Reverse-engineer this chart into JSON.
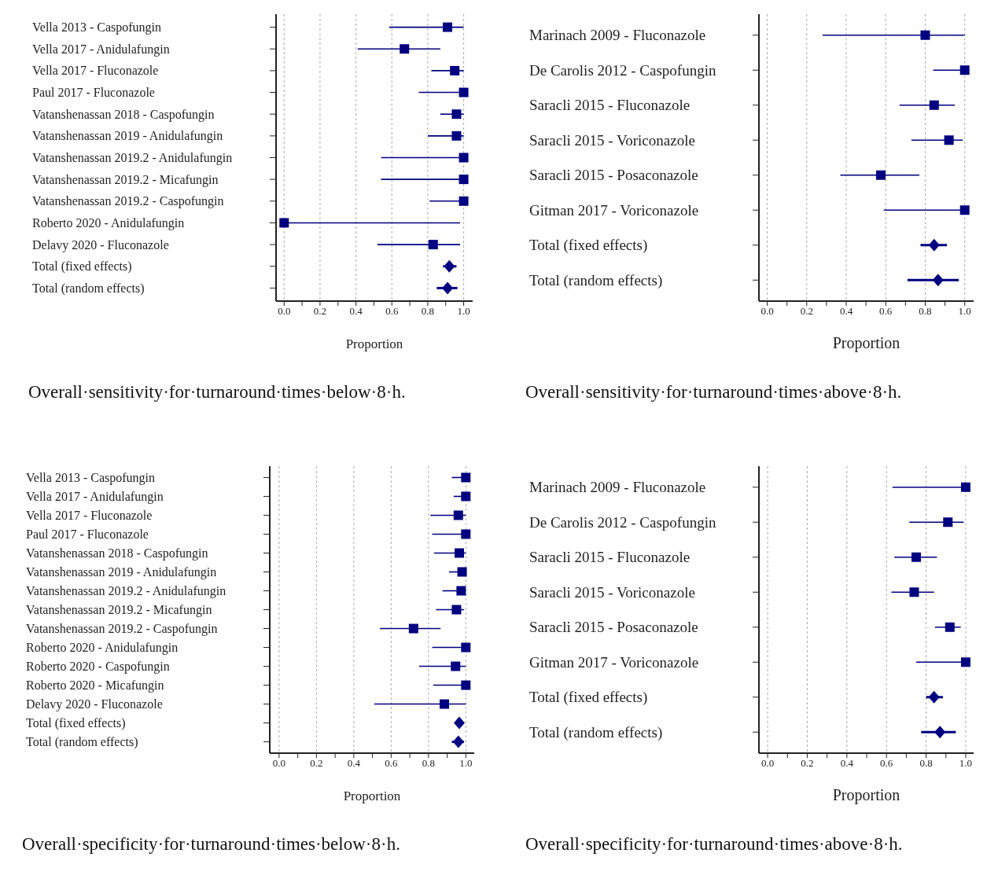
{
  "chart_data": [
    {
      "type": "scatter",
      "orientation": "horizontal",
      "title": "Overall·sensitivity·for·turnaround·times·below·8·h.",
      "xlabel": "Proportion",
      "grid": "x",
      "categories": [
        "Vella 2013 - Caspofungin",
        "Vella 2017 - Anidulafungin",
        "Vella 2017 - Fluconazole",
        "Paul 2017 - Fluconazole",
        "Vatanshenassan 2018 - Caspofungin",
        "Vatanshenassan 2019 - Anidulafungin",
        "Vatanshenassan 2019.2 - Anidulafungin",
        "Vatanshenassan 2019.2 - Micafungin",
        "Vatanshenassan 2019.2 - Caspofungin",
        "Roberto 2020 - Anidulafungin",
        "Delavy 2020 - Fluconazole",
        "Total (fixed effects)",
        "Total (random effects)"
      ],
      "xlim": [
        -0.045,
        1.05
      ],
      "xticks": [
        {
          "value": 0,
          "label": "0.0"
        },
        {
          "value": 0.1,
          "label": null
        },
        {
          "value": 0.2,
          "label": "0.2"
        },
        {
          "value": 0.3,
          "label": null
        },
        {
          "value": 0.4,
          "label": "0.4"
        },
        {
          "value": 0.5,
          "label": null
        },
        {
          "value": 0.6,
          "label": "0.6"
        },
        {
          "value": 0.7,
          "label": null
        },
        {
          "value": 0.8,
          "label": "0.8"
        },
        {
          "value": 0.9,
          "label": null
        },
        {
          "value": 1,
          "label": "1.0"
        }
      ],
      "series": [
        {
          "marker": "square",
          "color": "#000080",
          "values": [
            0.91,
            0.67,
            0.95,
            1.0,
            0.96,
            0.96,
            1.0,
            1.0,
            1.0,
            0.0,
            0.83,
            null,
            null
          ],
          "errors": [
            [
              0.585,
              1.0
            ],
            [
              0.41,
              0.87
            ],
            [
              0.82,
              1.0
            ],
            [
              0.75,
              1.0
            ],
            [
              0.87,
              1.0
            ],
            [
              0.8,
              1.0
            ],
            [
              0.54,
              1.0
            ],
            [
              0.54,
              1.0
            ],
            [
              0.81,
              1.0
            ],
            [
              0.0,
              0.98
            ],
            [
              0.52,
              0.98
            ],
            null,
            null
          ]
        },
        {
          "marker": "diamond",
          "color": "#000080",
          "values": [
            null,
            null,
            null,
            null,
            null,
            null,
            null,
            null,
            null,
            null,
            null,
            0.92,
            0.91
          ],
          "errors": [
            null,
            null,
            null,
            null,
            null,
            null,
            null,
            null,
            null,
            null,
            null,
            [
              0.885,
              0.96
            ],
            [
              0.85,
              0.965
            ]
          ]
        }
      ]
    },
    {
      "type": "scatter",
      "orientation": "horizontal",
      "title": "Overall·sensitivity·for·turnaround·times·above·8·h.",
      "xlabel": "Proportion",
      "grid": "x",
      "categories": [
        "Marinach 2009 - Fluconazole",
        "De Carolis 2012 - Caspofungin",
        "Saracli 2015 - Fluconazole",
        "Saracli 2015 - Voriconazole",
        "Saracli 2015 - Posaconazole",
        "Gitman 2017 - Voriconazole",
        "Total (fixed effects)",
        "Total (random effects)"
      ],
      "xlim": [
        -0.042,
        1.045
      ],
      "xticks": [
        {
          "value": 0,
          "label": "0.0"
        },
        {
          "value": 0.1,
          "label": null
        },
        {
          "value": 0.2,
          "label": "0.2"
        },
        {
          "value": 0.3,
          "label": null
        },
        {
          "value": 0.4,
          "label": "0.4"
        },
        {
          "value": 0.5,
          "label": null
        },
        {
          "value": 0.6,
          "label": "0.6"
        },
        {
          "value": 0.7,
          "label": null
        },
        {
          "value": 0.8,
          "label": "0.8"
        },
        {
          "value": 0.9,
          "label": null
        },
        {
          "value": 1,
          "label": "1.0"
        }
      ],
      "series": [
        {
          "marker": "square",
          "color": "#000080",
          "values": [
            0.8,
            1.0,
            0.845,
            0.92,
            0.575,
            1.0,
            null,
            null
          ],
          "errors": [
            [
              0.28,
              1.0
            ],
            [
              0.84,
              1.0
            ],
            [
              0.67,
              0.95
            ],
            [
              0.73,
              0.99
            ],
            [
              0.37,
              0.77
            ],
            [
              0.59,
              1.0
            ],
            null,
            null
          ]
        },
        {
          "marker": "diamond",
          "color": "#000080",
          "values": [
            null,
            null,
            null,
            null,
            null,
            null,
            0.845,
            0.865
          ],
          "errors": [
            null,
            null,
            null,
            null,
            null,
            null,
            [
              0.776,
              0.91
            ],
            [
              0.71,
              0.97
            ]
          ]
        }
      ]
    },
    {
      "type": "scatter",
      "orientation": "horizontal",
      "title": "Overall·specificity·for·turnaround·times·below·8·h.",
      "xlabel": "Proportion",
      "grid": "x",
      "categories": [
        "Vella 2013 - Caspofungin",
        "Vella 2017 - Anidulafungin",
        "Vella 2017 - Fluconazole",
        "Paul 2017 - Fluconazole",
        "Vatanshenassan 2018 - Caspofungin",
        "Vatanshenassan 2019 - Anidulafungin",
        "Vatanshenassan 2019.2 - Anidulafungin",
        "Vatanshenassan 2019.2 - Micafungin",
        "Vatanshenassan 2019.2 - Caspofungin",
        "Roberto 2020 - Anidulafungin",
        "Roberto 2020 - Caspofungin",
        "Roberto 2020 - Micafungin",
        "Delavy 2020 - Fluconazole",
        "Total (fixed effects)",
        "Total (random effects)"
      ],
      "xlim": [
        -0.05,
        1.045
      ],
      "xticks": [
        {
          "value": 0,
          "label": "0.0"
        },
        {
          "value": 0.1,
          "label": null
        },
        {
          "value": 0.2,
          "label": "0.2"
        },
        {
          "value": 0.3,
          "label": null
        },
        {
          "value": 0.4,
          "label": "0.4"
        },
        {
          "value": 0.5,
          "label": null
        },
        {
          "value": 0.6,
          "label": "0.6"
        },
        {
          "value": 0.7,
          "label": null
        },
        {
          "value": 0.8,
          "label": "0.8"
        },
        {
          "value": 0.9,
          "label": null
        },
        {
          "value": 1,
          "label": "1.0"
        }
      ],
      "series": [
        {
          "marker": "square",
          "color": "#000080",
          "values": [
            1.0,
            1.0,
            0.96,
            1.0,
            0.965,
            0.98,
            0.975,
            0.95,
            0.72,
            1.0,
            0.945,
            1.0,
            0.885,
            null,
            null
          ],
          "errors": [
            [
              0.925,
              1.0
            ],
            [
              0.935,
              1.0
            ],
            [
              0.81,
              1.0
            ],
            [
              0.82,
              1.0
            ],
            [
              0.83,
              1.0
            ],
            [
              0.91,
              1.0
            ],
            [
              0.875,
              1.0
            ],
            [
              0.84,
              0.99
            ],
            [
              0.54,
              0.865
            ],
            [
              0.82,
              1.0
            ],
            [
              0.75,
              1.0
            ],
            [
              0.825,
              1.0
            ],
            [
              0.51,
              1.0
            ],
            null,
            null
          ]
        },
        {
          "marker": "diamond",
          "color": "#000080",
          "values": [
            null,
            null,
            null,
            null,
            null,
            null,
            null,
            null,
            null,
            null,
            null,
            null,
            null,
            0.965,
            0.96
          ],
          "errors": [
            null,
            null,
            null,
            null,
            null,
            null,
            null,
            null,
            null,
            null,
            null,
            null,
            null,
            [
              0.945,
              0.98
            ],
            [
              0.925,
              0.99
            ]
          ]
        }
      ]
    },
    {
      "type": "scatter",
      "orientation": "horizontal",
      "title": "Overall·specificity·for·turnaround·times·above·8·h.",
      "xlabel": "Proportion",
      "grid": "x",
      "categories": [
        "Marinach 2009 - Fluconazole",
        "De Carolis 2012 - Caspofungin",
        "Saracli 2015 - Fluconazole",
        "Saracli 2015 - Voriconazole",
        "Saracli 2015 - Posaconazole",
        "Gitman 2017 - Voriconazole",
        "Total (fixed effects)",
        "Total (random effects)"
      ],
      "xlim": [
        -0.044,
        1.04
      ],
      "xticks": [
        {
          "value": 0,
          "label": "0.0"
        },
        {
          "value": 0.1,
          "label": null
        },
        {
          "value": 0.2,
          "label": "0.2"
        },
        {
          "value": 0.3,
          "label": null
        },
        {
          "value": 0.4,
          "label": "0.4"
        },
        {
          "value": 0.5,
          "label": null
        },
        {
          "value": 0.6,
          "label": "0.6"
        },
        {
          "value": 0.7,
          "label": null
        },
        {
          "value": 0.8,
          "label": "0.8"
        },
        {
          "value": 0.9,
          "label": null
        },
        {
          "value": 1,
          "label": "1.0"
        }
      ],
      "series": [
        {
          "marker": "square",
          "color": "#000080",
          "values": [
            1.0,
            0.91,
            0.75,
            0.74,
            0.92,
            1.0,
            null,
            null
          ],
          "errors": [
            [
              0.63,
              1.0
            ],
            [
              0.715,
              0.99
            ],
            [
              0.64,
              0.855
            ],
            [
              0.625,
              0.84
            ],
            [
              0.845,
              0.975
            ],
            [
              0.75,
              1.0
            ],
            null,
            null
          ]
        },
        {
          "marker": "diamond",
          "color": "#000080",
          "values": [
            null,
            null,
            null,
            null,
            null,
            null,
            0.84,
            0.87
          ],
          "errors": [
            null,
            null,
            null,
            null,
            null,
            null,
            [
              0.8,
              0.885
            ],
            [
              0.775,
              0.95
            ]
          ]
        }
      ]
    }
  ]
}
